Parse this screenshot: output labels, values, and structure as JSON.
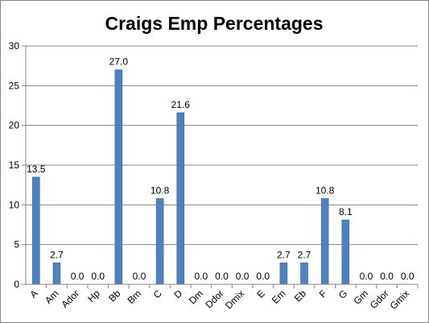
{
  "colors": {
    "bar": "#4f81bd",
    "bar_stroke": "#3a6ba5",
    "gridline": "#868686",
    "axis": "#868686",
    "frame": "#868686"
  },
  "chart_data": {
    "type": "bar",
    "title": "Craigs Emp Percentages",
    "xlabel": "",
    "ylabel": "",
    "categories": [
      "A",
      "Am",
      "Ador",
      "Hp",
      "Bb",
      "Bm",
      "C",
      "D",
      "Dm",
      "Ddor",
      "Dmix",
      "E",
      "Em",
      "Eb",
      "F",
      "G",
      "Gm",
      "Gdor",
      "Gmix"
    ],
    "values": [
      13.5,
      2.7,
      0.0,
      0.0,
      27.0,
      0.0,
      10.8,
      21.6,
      0.0,
      0.0,
      0.0,
      0.0,
      2.7,
      2.7,
      10.8,
      8.1,
      0.0,
      0.0,
      0.0
    ],
    "data_labels": [
      "13.5",
      "2.7",
      "0.0",
      "0.0",
      "27.0",
      "0.0",
      "10.8",
      "21.6",
      "0.0",
      "0.0",
      "0.0",
      "0.0",
      "2.7",
      "2.7",
      "10.8",
      "8.1",
      "0.0",
      "0.0",
      "0.0"
    ],
    "ylim": [
      0,
      30
    ],
    "yticks": [
      0,
      5,
      10,
      15,
      20,
      25,
      30
    ],
    "ytick_labels": [
      "0",
      "5",
      "10",
      "15",
      "20",
      "25",
      "30"
    ],
    "grid": true,
    "legend": "none"
  }
}
